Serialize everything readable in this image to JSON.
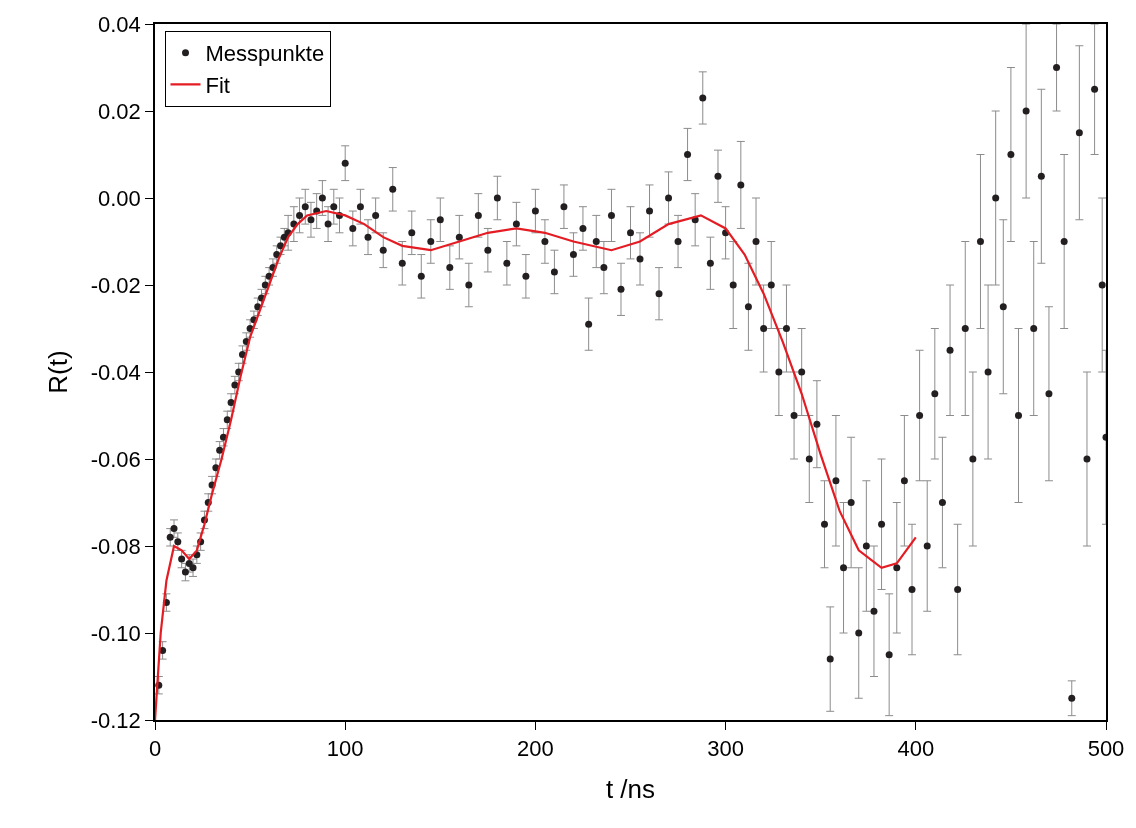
{
  "chart_data": {
    "type": "scatter",
    "xlabel": "t /ns",
    "ylabel": "R(t)",
    "xlim": [
      0,
      500
    ],
    "xticks": [
      0,
      100,
      200,
      300,
      400,
      500
    ],
    "ylim": [
      -0.12,
      0.04
    ],
    "yticks": [
      -0.12,
      {
        "value": -0.1,
        "label": "-0.10"
      },
      -0.08,
      -0.06,
      -0.04,
      -0.02,
      {
        "value": 0,
        "label": "0.00"
      },
      0.02,
      0.04
    ],
    "grid": false,
    "legend": "top left",
    "series": [
      {
        "name": "Messpunkte",
        "marker": "circle",
        "color": "#231f20",
        "x": [
          2,
          4,
          6,
          8,
          10,
          12,
          14,
          16,
          18,
          20,
          22,
          24,
          26,
          28,
          30,
          32,
          34,
          36,
          38,
          40,
          42,
          44,
          46,
          48,
          50,
          52,
          54,
          56,
          58,
          60,
          62,
          64,
          66,
          68,
          70,
          73,
          76,
          79,
          82,
          85,
          88,
          91,
          94,
          97,
          100,
          104,
          108,
          112,
          116,
          120,
          125,
          130,
          135,
          140,
          145,
          150,
          155,
          160,
          165,
          170,
          175,
          180,
          185,
          190,
          195,
          200,
          205,
          210,
          215,
          220,
          225,
          228,
          232,
          236,
          240,
          245,
          250,
          255,
          260,
          265,
          270,
          275,
          280,
          284,
          288,
          292,
          296,
          300,
          304,
          308,
          312,
          316,
          320,
          324,
          328,
          332,
          336,
          340,
          344,
          348,
          352,
          355,
          358,
          362,
          366,
          370,
          374,
          378,
          382,
          386,
          390,
          394,
          398,
          402,
          406,
          410,
          414,
          418,
          422,
          426,
          430,
          434,
          438,
          442,
          446,
          450,
          454,
          458,
          462,
          466,
          470,
          474,
          478,
          482,
          486,
          490,
          494,
          498,
          500
        ],
        "values": [
          -0.112,
          -0.104,
          -0.093,
          -0.078,
          -0.076,
          -0.079,
          -0.083,
          -0.086,
          -0.084,
          -0.085,
          -0.082,
          -0.079,
          -0.074,
          -0.07,
          -0.066,
          -0.062,
          -0.058,
          -0.055,
          -0.051,
          -0.047,
          -0.043,
          -0.04,
          -0.036,
          -0.033,
          -0.03,
          -0.028,
          -0.025,
          -0.023,
          -0.02,
          -0.018,
          -0.016,
          -0.013,
          -0.011,
          -0.009,
          -0.008,
          -0.006,
          -0.004,
          -0.002,
          -0.005,
          -0.003,
          0.0,
          -0.006,
          -0.002,
          -0.004,
          0.008,
          -0.007,
          -0.002,
          -0.009,
          -0.004,
          -0.012,
          0.002,
          -0.015,
          -0.008,
          -0.018,
          -0.01,
          -0.005,
          -0.016,
          -0.009,
          -0.02,
          -0.004,
          -0.012,
          0.0,
          -0.015,
          -0.006,
          -0.018,
          -0.003,
          -0.01,
          -0.017,
          -0.002,
          -0.013,
          -0.007,
          -0.029,
          -0.01,
          -0.016,
          -0.004,
          -0.021,
          -0.008,
          -0.014,
          -0.003,
          -0.022,
          0.0,
          -0.01,
          0.01,
          -0.005,
          0.023,
          -0.015,
          0.005,
          -0.008,
          -0.02,
          0.003,
          -0.025,
          -0.01,
          -0.03,
          -0.02,
          -0.04,
          -0.03,
          -0.05,
          -0.04,
          -0.06,
          -0.052,
          -0.075,
          -0.106,
          -0.065,
          -0.085,
          -0.07,
          -0.1,
          -0.08,
          -0.095,
          -0.075,
          -0.105,
          -0.085,
          -0.065,
          -0.09,
          -0.05,
          -0.08,
          -0.045,
          -0.07,
          -0.035,
          -0.09,
          -0.03,
          -0.06,
          -0.01,
          -0.04,
          0.0,
          -0.025,
          0.01,
          -0.05,
          0.02,
          -0.03,
          0.005,
          -0.045,
          0.03,
          -0.01,
          -0.115,
          0.015,
          -0.06,
          0.025,
          -0.02,
          -0.055
        ],
        "errors": [
          0.002,
          0.002,
          0.002,
          0.002,
          0.002,
          0.002,
          0.002,
          0.002,
          0.002,
          0.002,
          0.002,
          0.002,
          0.002,
          0.002,
          0.002,
          0.002,
          0.002,
          0.002,
          0.002,
          0.002,
          0.002,
          0.002,
          0.002,
          0.002,
          0.002,
          0.002,
          0.002,
          0.002,
          0.002,
          0.002,
          0.002,
          0.002,
          0.002,
          0.002,
          0.004,
          0.004,
          0.004,
          0.004,
          0.004,
          0.004,
          0.004,
          0.004,
          0.004,
          0.004,
          0.004,
          0.004,
          0.004,
          0.004,
          0.004,
          0.004,
          0.005,
          0.005,
          0.005,
          0.005,
          0.005,
          0.005,
          0.005,
          0.005,
          0.005,
          0.005,
          0.005,
          0.005,
          0.005,
          0.005,
          0.005,
          0.005,
          0.005,
          0.005,
          0.005,
          0.005,
          0.005,
          0.006,
          0.006,
          0.006,
          0.006,
          0.006,
          0.006,
          0.006,
          0.006,
          0.006,
          0.006,
          0.006,
          0.006,
          0.006,
          0.006,
          0.006,
          0.006,
          0.006,
          0.01,
          0.01,
          0.01,
          0.01,
          0.01,
          0.01,
          0.01,
          0.01,
          0.01,
          0.01,
          0.01,
          0.01,
          0.01,
          0.012,
          0.015,
          0.015,
          0.015,
          0.015,
          0.015,
          0.015,
          0.015,
          0.014,
          0.015,
          0.015,
          0.015,
          0.015,
          0.015,
          0.015,
          0.015,
          0.015,
          0.015,
          0.02,
          0.02,
          0.02,
          0.02,
          0.02,
          0.02,
          0.02,
          0.02,
          0.02,
          0.02,
          0.02,
          0.02,
          0.01,
          0.02,
          0.004,
          0.02,
          0.02,
          0.015,
          0.02,
          0.02
        ]
      },
      {
        "name": "Fit",
        "type": "line",
        "marker": "none",
        "line_style": "solid",
        "color": "#e41c23",
        "x": [
          0,
          3,
          6,
          10,
          14,
          18,
          22,
          26,
          30,
          35,
          40,
          45,
          50,
          55,
          60,
          65,
          70,
          75,
          80,
          90,
          100,
          110,
          120,
          130,
          145,
          160,
          175,
          190,
          205,
          220,
          240,
          255,
          270,
          287,
          300,
          310,
          320,
          330,
          340,
          350,
          360,
          370,
          382,
          390,
          400
        ],
        "values": [
          -0.12,
          -0.1,
          -0.088,
          -0.08,
          -0.081,
          -0.083,
          -0.081,
          -0.075,
          -0.068,
          -0.06,
          -0.051,
          -0.041,
          -0.032,
          -0.026,
          -0.02,
          -0.014,
          -0.009,
          -0.006,
          -0.004,
          -0.003,
          -0.004,
          -0.006,
          -0.009,
          -0.011,
          -0.012,
          -0.01,
          -0.008,
          -0.007,
          -0.008,
          -0.01,
          -0.012,
          -0.01,
          -0.006,
          -0.004,
          -0.007,
          -0.013,
          -0.022,
          -0.033,
          -0.045,
          -0.059,
          -0.072,
          -0.081,
          -0.085,
          -0.084,
          -0.078
        ]
      }
    ]
  }
}
